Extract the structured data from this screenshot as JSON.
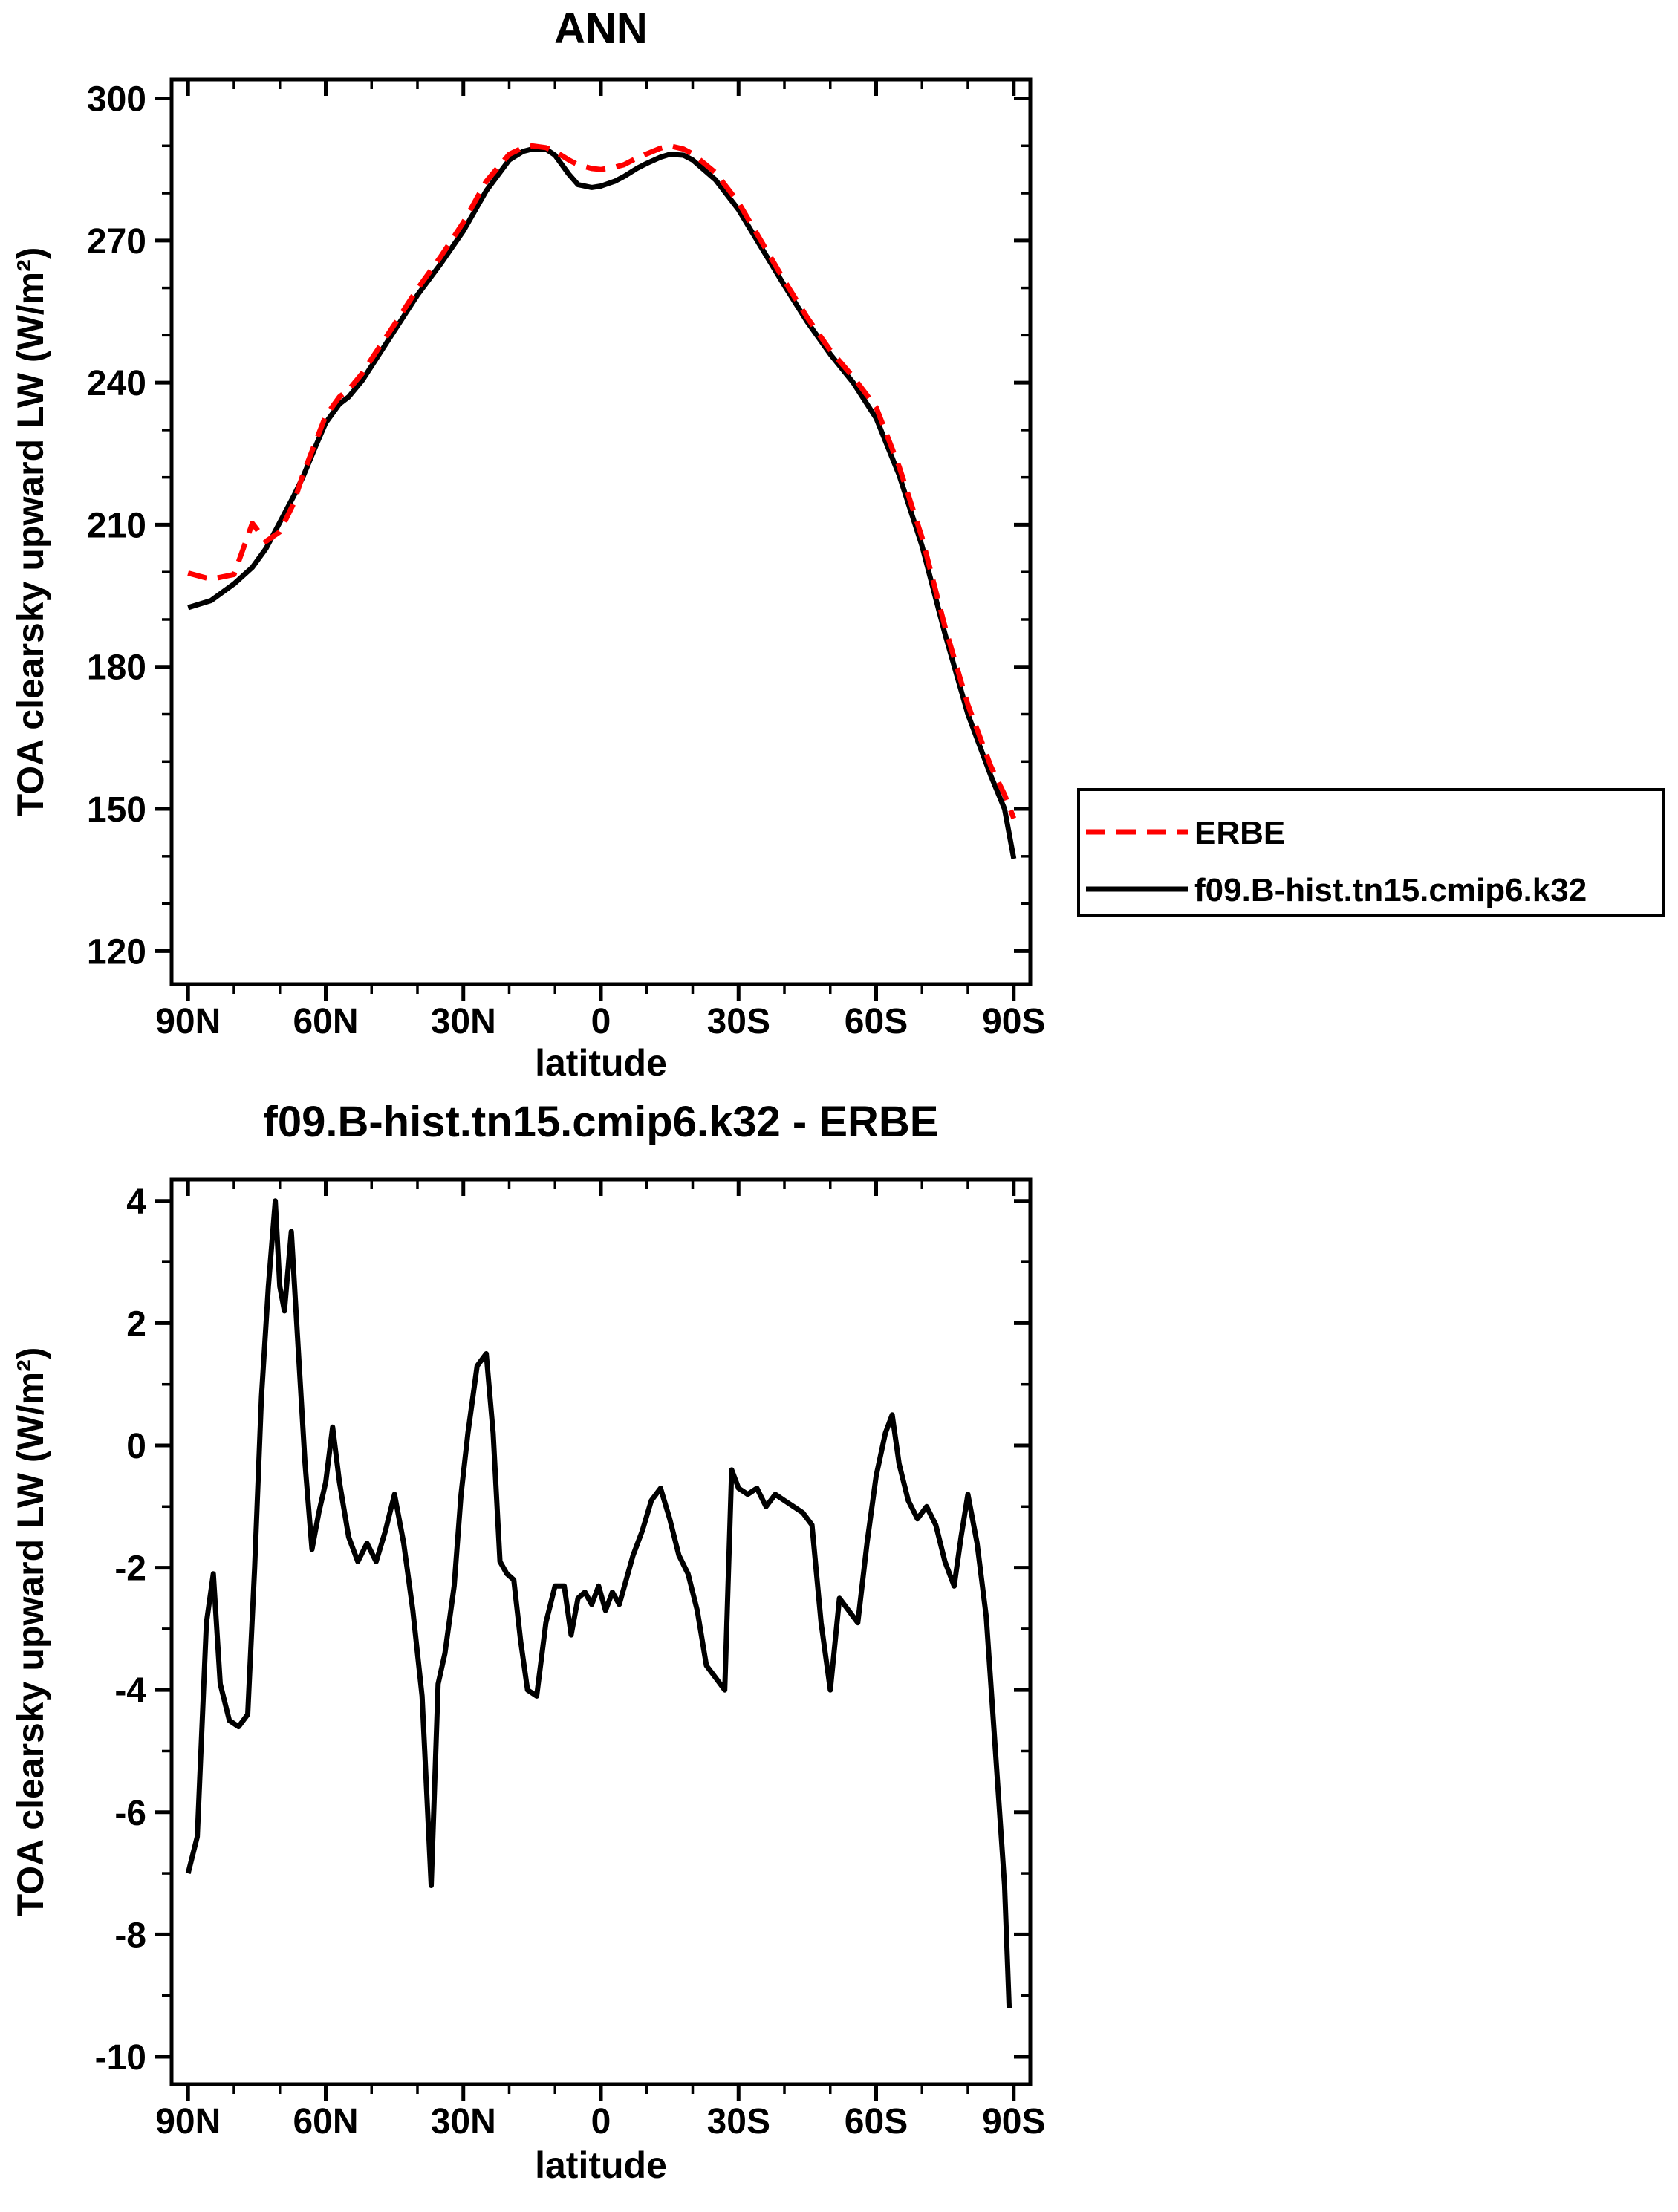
{
  "page": {
    "background_color": "#ffffff",
    "text_color": "#000000",
    "accent_red": "#ff0000"
  },
  "chart_data": [
    {
      "type": "line",
      "title": "ANN",
      "xlabel": "latitude",
      "ylabel": "TOA clearsky upward LW (W/m²)",
      "grid": false,
      "legend_position": "outside-right-lower",
      "axes": {
        "x_ticks": {
          "labels": [
            "90N",
            "60N",
            "30N",
            "0",
            "30S",
            "60S",
            "90S"
          ],
          "lats": [
            90,
            60,
            30,
            0,
            -30,
            -60,
            -90
          ]
        },
        "x_minor_step": 10,
        "x_frame": [
          93.6,
          -93.6
        ],
        "y_ticks": [
          120,
          150,
          180,
          210,
          240,
          270,
          300
        ],
        "y_minor_step": 10,
        "y_frame": [
          113,
          304
        ],
        "ylim": [
          120,
          300
        ]
      },
      "legend": [
        {
          "label": "ERBE",
          "color": "#ff0000",
          "dash": true
        },
        {
          "label": "f09.B-hist.tn15.cmip6.k32",
          "color": "#000000",
          "dash": false
        }
      ],
      "series": [
        {
          "name": "model",
          "label": "f09.B-hist.tn15.cmip6.k32",
          "color": "#000000",
          "dash": false,
          "lat": [
            90,
            85,
            80,
            76,
            73,
            70,
            67,
            65,
            62,
            60,
            57,
            55,
            52,
            50,
            45,
            40,
            35,
            30,
            25,
            20,
            17,
            15,
            12,
            10,
            7,
            5,
            2,
            0,
            -3,
            -5,
            -8,
            -10,
            -13,
            -15,
            -18,
            -20,
            -25,
            -30,
            -35,
            -40,
            -45,
            -50,
            -55,
            -60,
            -65,
            -70,
            -75,
            -80,
            -85,
            -88,
            -90
          ],
          "values": [
            192.5,
            194,
            197.5,
            201,
            205,
            210.5,
            216,
            220,
            227,
            231.5,
            235.5,
            237,
            240.5,
            243.5,
            251,
            258.5,
            265,
            272,
            280.5,
            287,
            288.8,
            289.3,
            289.3,
            288,
            284,
            281.8,
            281.2,
            281.5,
            282.5,
            283.5,
            285.3,
            286.3,
            287.6,
            288.2,
            288,
            287,
            282.8,
            276.5,
            268.5,
            260.5,
            252.8,
            246,
            240,
            232.5,
            220.5,
            205.5,
            187,
            170,
            157,
            150,
            139.5
          ]
        },
        {
          "name": "erbe",
          "label": "ERBE",
          "color": "#ff0000",
          "dash": true,
          "lat": [
            90,
            85,
            80,
            76,
            73,
            70,
            67,
            65,
            62,
            60,
            57,
            55,
            52,
            50,
            45,
            40,
            35,
            30,
            25,
            20,
            17,
            15,
            12,
            10,
            7,
            5,
            2,
            0,
            -3,
            -5,
            -8,
            -10,
            -13,
            -15,
            -18,
            -20,
            -25,
            -30,
            -35,
            -40,
            -45,
            -50,
            -55,
            -60,
            -65,
            -70,
            -75,
            -80,
            -85,
            -88,
            -90
          ],
          "values": [
            199.8,
            198.5,
            199.5,
            210.3,
            206.5,
            208.5,
            214.5,
            220.5,
            228,
            233,
            237,
            238.5,
            242,
            245,
            252.3,
            259.8,
            266.5,
            273.8,
            282.5,
            288.2,
            289.6,
            290,
            289.6,
            288.8,
            287,
            286,
            285.2,
            285,
            285.5,
            286,
            287.5,
            288.3,
            289.5,
            290,
            289.3,
            288.3,
            284.3,
            278,
            269.8,
            261.5,
            253.7,
            246.8,
            241.2,
            234.8,
            222.3,
            207.3,
            188.5,
            172,
            159,
            153,
            148
          ]
        }
      ]
    },
    {
      "type": "line",
      "title": "f09.B-hist.tn15.cmip6.k32 - ERBE",
      "xlabel": "latitude",
      "ylabel": "TOA clearsky upward LW (W/m²)",
      "grid": false,
      "axes": {
        "x_ticks": {
          "labels": [
            "90N",
            "60N",
            "30N",
            "0",
            "30S",
            "60S",
            "90S"
          ],
          "lats": [
            90,
            60,
            30,
            0,
            -30,
            -60,
            -90
          ]
        },
        "x_minor_step": 10,
        "x_frame": [
          93.6,
          -93.6
        ],
        "y_ticks": [
          -10,
          -8,
          -6,
          -4,
          -2,
          0,
          2,
          4
        ],
        "y_minor_step": 1,
        "y_frame": [
          -10.45,
          4.35
        ],
        "ylim": [
          -10,
          4
        ]
      },
      "series": [
        {
          "name": "difference",
          "label": "f09.B-hist.tn15.cmip6.k32 - ERBE",
          "color": "#000000",
          "dash": false,
          "lat": [
            90,
            88,
            86,
            84.5,
            83,
            81,
            79,
            77,
            75.5,
            74,
            72.5,
            71,
            70,
            69,
            67.5,
            66,
            64.5,
            63,
            61.5,
            60,
            58.5,
            57,
            55,
            53,
            51,
            49,
            47,
            45,
            43,
            41,
            39,
            37,
            35.5,
            34,
            32,
            30.5,
            29,
            27,
            25,
            23.5,
            22,
            20.5,
            19,
            17.5,
            16,
            14,
            12,
            10,
            8,
            6.5,
            5,
            3.5,
            2,
            0.5,
            -1,
            -2.5,
            -4,
            -5.5,
            -7,
            -9,
            -11,
            -13,
            -15,
            -17,
            -19,
            -21,
            -23,
            -25,
            -27,
            -28.5,
            -30,
            -32,
            -34,
            -36,
            -38,
            -40,
            -42,
            -44,
            -46,
            -48,
            -50,
            -52,
            -54,
            -56,
            -58,
            -60,
            -62,
            -63.5,
            -65,
            -67,
            -69,
            -71,
            -73,
            -75,
            -77,
            -78.5,
            -80,
            -82,
            -84,
            -86,
            -88,
            -89
          ],
          "values": [
            -7.0,
            -6.4,
            -2.9,
            -2.1,
            -3.9,
            -4.5,
            -4.6,
            -4.4,
            -2.0,
            0.8,
            2.6,
            4.0,
            2.6,
            2.2,
            3.5,
            1.6,
            -0.3,
            -1.7,
            -1.1,
            -0.6,
            0.3,
            -0.6,
            -1.5,
            -1.9,
            -1.6,
            -1.9,
            -1.4,
            -0.8,
            -1.6,
            -2.7,
            -4.1,
            -7.2,
            -3.9,
            -3.4,
            -2.3,
            -0.8,
            0.2,
            1.3,
            1.5,
            0.2,
            -1.9,
            -2.1,
            -2.2,
            -3.2,
            -4.0,
            -4.1,
            -2.9,
            -2.3,
            -2.3,
            -3.1,
            -2.5,
            -2.4,
            -2.6,
            -2.3,
            -2.7,
            -2.4,
            -2.6,
            -2.2,
            -1.8,
            -1.4,
            -0.9,
            -0.7,
            -1.2,
            -1.8,
            -2.1,
            -2.7,
            -3.6,
            -3.8,
            -4.0,
            -0.4,
            -0.7,
            -0.8,
            -0.7,
            -1.0,
            -0.8,
            -0.9,
            -1.0,
            -1.1,
            -1.3,
            -2.9,
            -4.0,
            -2.5,
            -2.7,
            -2.9,
            -1.6,
            -0.5,
            0.2,
            0.5,
            -0.3,
            -0.9,
            -1.2,
            -1.0,
            -1.3,
            -1.9,
            -2.3,
            -1.5,
            -0.8,
            -1.6,
            -2.8,
            -5.0,
            -7.2,
            -9.2
          ]
        }
      ]
    }
  ]
}
